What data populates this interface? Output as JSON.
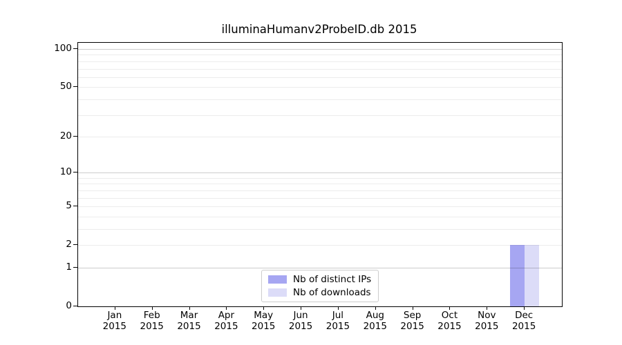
{
  "chart_data": {
    "type": "bar",
    "title": "illuminaHumanv2ProbeID.db 2015",
    "categories": [
      "Jan",
      "Feb",
      "Mar",
      "Apr",
      "May",
      "Jun",
      "Jul",
      "Aug",
      "Sep",
      "Oct",
      "Nov",
      "Dec"
    ],
    "category_year": "2015",
    "series": [
      {
        "name": "Nb of distinct IPs",
        "color": "#a6a6f2",
        "values": [
          0,
          0,
          0,
          0,
          0,
          0,
          0,
          0,
          0,
          0,
          0,
          2
        ]
      },
      {
        "name": "Nb of downloads",
        "color": "#dcdcf8",
        "values": [
          0,
          0,
          0,
          0,
          0,
          0,
          0,
          0,
          0,
          0,
          0,
          2
        ]
      }
    ],
    "y_scale": "log1p",
    "y_ticks": [
      0,
      1,
      2,
      5,
      10,
      20,
      50,
      100
    ],
    "y_major_gridlines": [
      1,
      10,
      100
    ],
    "ylim": [
      0,
      112
    ],
    "grid": "horizontal",
    "legend_position": "lower center",
    "colors": {
      "major_grid": "#cccccc",
      "minor_grid": "#ececec",
      "axis": "#000000",
      "legend_border": "#cccccc",
      "text": "#000000",
      "background": "#ffffff"
    }
  }
}
